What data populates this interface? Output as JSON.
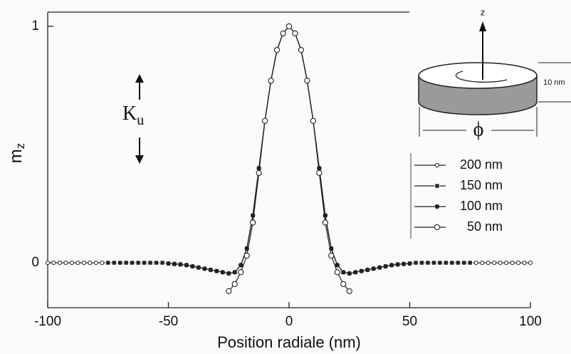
{
  "chart_data": {
    "type": "line",
    "x_label": "Position radiale (nm)",
    "y_label": {
      "base": "m",
      "sub": "z"
    },
    "anisotropy_label": {
      "base": "K",
      "sub": "u"
    },
    "inset": {
      "axis": "z",
      "height": "10 nm",
      "diameter": "ϕ"
    },
    "xlim": [
      -100,
      100
    ],
    "xticks": [
      -100,
      -50,
      0,
      50,
      100
    ],
    "ylim": [
      -0.19,
      1.06
    ],
    "yticks": [
      0,
      1
    ],
    "x": [
      -100,
      -97.5,
      -95,
      -92.5,
      -90,
      -87.5,
      -85,
      -82.5,
      -80,
      -77.5,
      -75,
      -72.5,
      -70,
      -67.5,
      -65,
      -62.5,
      -60,
      -57.5,
      -55,
      -52.5,
      -50,
      -47.5,
      -45,
      -42.5,
      -40,
      -37.5,
      -35,
      -32.5,
      -30,
      -27.5,
      -25,
      -22.5,
      -20,
      -17.5,
      -15,
      -12.5,
      -10,
      -7.5,
      -5,
      -2.5,
      0,
      2.5,
      5,
      7.5,
      10,
      12.5,
      15,
      17.5,
      20,
      22.5,
      25,
      27.5,
      30,
      32.5,
      35,
      37.5,
      40,
      42.5,
      45,
      47.5,
      50,
      52.5,
      55,
      57.5,
      60,
      62.5,
      65,
      67.5,
      70,
      72.5,
      75,
      77.5,
      80,
      82.5,
      85,
      87.5,
      90,
      92.5,
      95,
      97.5,
      100
    ],
    "series": [
      {
        "name": "200 nm",
        "color": "#222222",
        "marker": "open-small",
        "values": [
          0,
          0,
          0,
          0,
          0,
          0,
          0,
          0,
          0,
          0,
          0,
          0,
          0,
          0,
          0,
          0,
          0,
          0,
          0,
          0,
          -0.003,
          -0.005,
          -0.007,
          -0.01,
          -0.015,
          -0.02,
          -0.025,
          -0.03,
          -0.035,
          -0.04,
          -0.045,
          -0.04,
          -0.01,
          0.06,
          0.2,
          0.4,
          0.6,
          0.77,
          0.9,
          0.97,
          1,
          0.97,
          0.9,
          0.77,
          0.6,
          0.4,
          0.2,
          0.06,
          -0.01,
          -0.04,
          -0.045,
          -0.04,
          -0.035,
          -0.03,
          -0.025,
          -0.02,
          -0.015,
          -0.01,
          -0.007,
          -0.005,
          -0.003,
          0,
          0,
          0,
          0,
          0,
          0,
          0,
          0,
          0,
          0,
          0,
          0,
          0,
          0,
          0,
          0,
          0,
          0,
          0,
          0
        ]
      },
      {
        "name": "150 nm",
        "color": "#222222",
        "marker": "square",
        "values": [
          null,
          null,
          null,
          null,
          null,
          null,
          null,
          null,
          null,
          null,
          0,
          0,
          0,
          0,
          0,
          0,
          0,
          0,
          0,
          0,
          -0.003,
          -0.005,
          -0.007,
          -0.01,
          -0.015,
          -0.02,
          -0.025,
          -0.03,
          -0.035,
          -0.04,
          -0.045,
          -0.04,
          -0.01,
          0.06,
          0.2,
          0.4,
          0.6,
          0.77,
          0.9,
          0.97,
          1,
          0.97,
          0.9,
          0.77,
          0.6,
          0.4,
          0.2,
          0.06,
          -0.01,
          -0.04,
          -0.045,
          -0.04,
          -0.035,
          -0.03,
          -0.025,
          -0.02,
          -0.015,
          -0.01,
          -0.007,
          -0.005,
          -0.003,
          0,
          0,
          0,
          0,
          0,
          0,
          0,
          0,
          0,
          0,
          null,
          null,
          null,
          null,
          null,
          null,
          null,
          null,
          null,
          null
        ]
      },
      {
        "name": "100 nm",
        "color": "#222222",
        "marker": "dot",
        "values": [
          null,
          null,
          null,
          null,
          null,
          null,
          null,
          null,
          null,
          null,
          null,
          null,
          null,
          null,
          null,
          null,
          null,
          null,
          null,
          null,
          -0.003,
          -0.005,
          -0.007,
          -0.01,
          -0.015,
          -0.02,
          -0.025,
          -0.03,
          -0.035,
          -0.04,
          -0.045,
          -0.04,
          -0.01,
          0.06,
          0.2,
          0.4,
          0.6,
          0.77,
          0.9,
          0.97,
          1,
          0.97,
          0.9,
          0.77,
          0.6,
          0.4,
          0.2,
          0.06,
          -0.01,
          -0.04,
          -0.045,
          -0.04,
          -0.035,
          -0.03,
          -0.025,
          -0.02,
          -0.015,
          -0.01,
          -0.007,
          -0.005,
          -0.003,
          null,
          null,
          null,
          null,
          null,
          null,
          null,
          null,
          null,
          null,
          null,
          null,
          null,
          null,
          null,
          null,
          null,
          null,
          null,
          null
        ]
      },
      {
        "name": "50 nm",
        "color": "#222222",
        "marker": "open-large",
        "values": [
          null,
          null,
          null,
          null,
          null,
          null,
          null,
          null,
          null,
          null,
          null,
          null,
          null,
          null,
          null,
          null,
          null,
          null,
          null,
          null,
          null,
          null,
          null,
          null,
          null,
          null,
          null,
          null,
          null,
          null,
          -0.12,
          -0.09,
          -0.04,
          0.03,
          0.17,
          0.38,
          0.6,
          0.77,
          0.9,
          0.97,
          1,
          0.97,
          0.9,
          0.77,
          0.6,
          0.38,
          0.17,
          0.03,
          -0.04,
          -0.09,
          -0.12,
          null,
          null,
          null,
          null,
          null,
          null,
          null,
          null,
          null,
          null,
          null,
          null,
          null,
          null,
          null,
          null,
          null,
          null,
          null,
          null,
          null,
          null,
          null,
          null,
          null,
          null,
          null,
          null,
          null,
          null
        ]
      }
    ]
  }
}
